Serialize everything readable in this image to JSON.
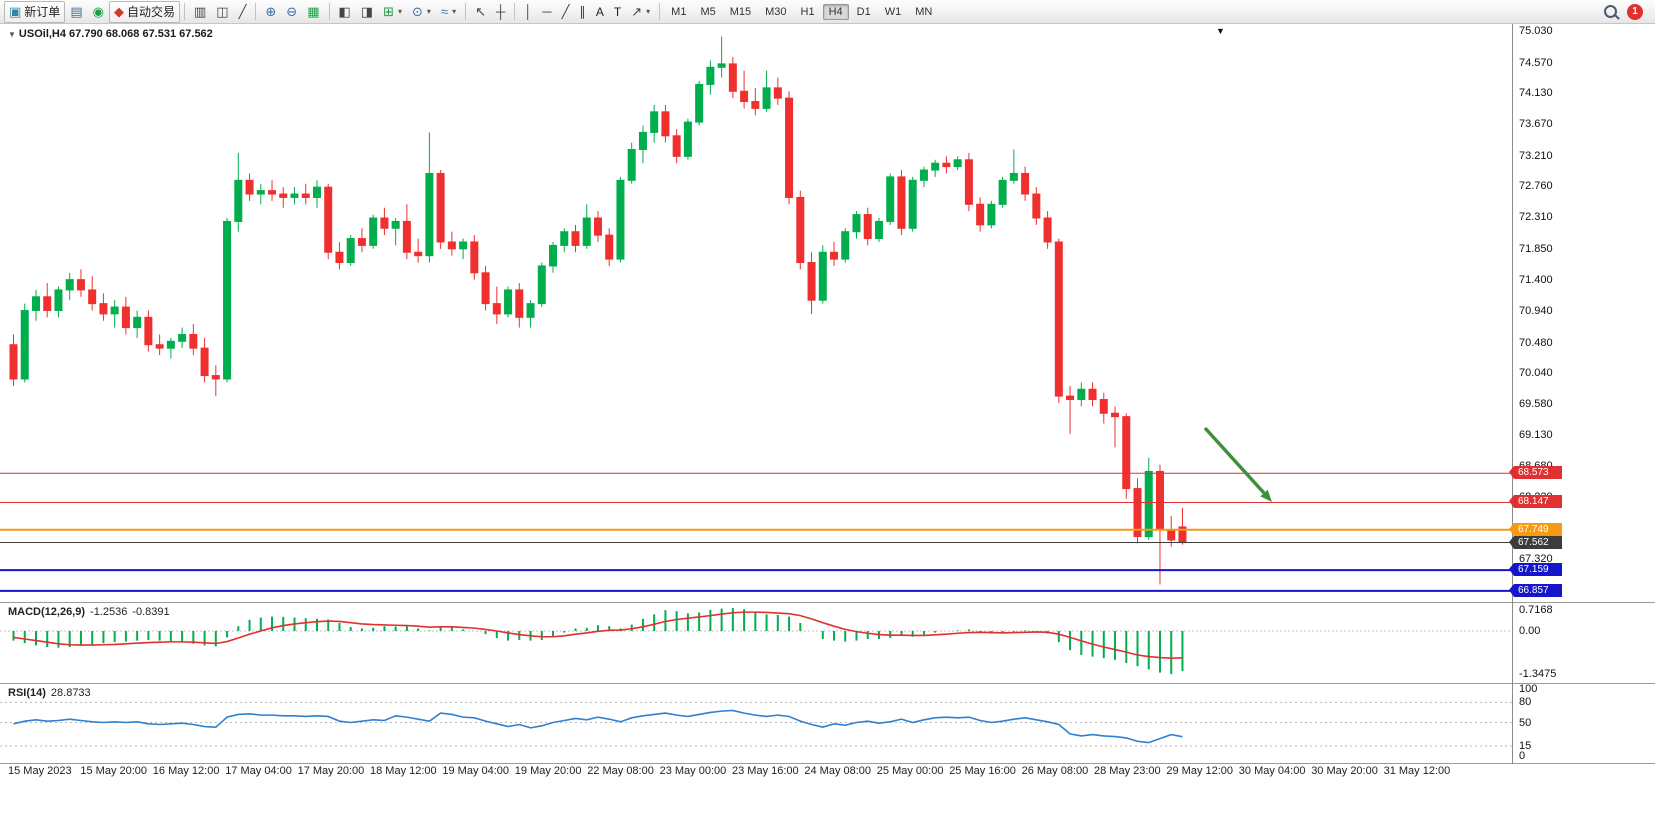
{
  "toolbar": {
    "new_order_label": "新订单",
    "auto_trading_label": "自动交易",
    "text_tool_label": "A",
    "textbox_tool_label": "T",
    "timeframes": [
      "M1",
      "M5",
      "M15",
      "M30",
      "H1",
      "H4",
      "D1",
      "W1",
      "MN"
    ],
    "active_timeframe": "H4",
    "notification_count": "1",
    "icons": {
      "new_order": "▣",
      "market_watch": "▤",
      "navigator": "◉",
      "auto_trading": "◆",
      "bars_chart": "▥",
      "candles_chart": "◫",
      "line_chart": "╱",
      "zoom_in": "⊕",
      "zoom_out": "⊖",
      "grid": "▦",
      "tile_windows": "◧",
      "cascade_windows": "◨",
      "new_chart": "⊞",
      "periods": "⊙",
      "indicators": "≈",
      "cursor": "↖",
      "crosshair": "┼",
      "vline": "│",
      "hline": "─",
      "trendline": "╱",
      "channel": "∥",
      "shapes": "↗",
      "caret": "▾",
      "shift_marker": "▼",
      "header_caret": "▼"
    }
  },
  "chart": {
    "symbol_header": "USOil,H4 67.790 68.068 67.531 67.562",
    "colors": {
      "up": "#00ae4d",
      "down": "#f02f2f",
      "macd_bar": "#00ae4d",
      "macd_signal": "#e03030",
      "rsi_line": "#2f80cf",
      "arrow": "#3f8e3a",
      "level_red": "#e03030",
      "level_orange": "#f59a12",
      "level_blue": "#1515cc",
      "level_dark": "#3c3c3c"
    },
    "price_axis_labels": [
      "75.030",
      "74.570",
      "74.130",
      "73.670",
      "73.210",
      "72.760",
      "72.310",
      "71.850",
      "71.400",
      "70.940",
      "70.480",
      "70.040",
      "69.580",
      "69.130",
      "68.680",
      "68.220",
      "67.760",
      "67.320",
      "66.860"
    ],
    "price_lines": [
      {
        "price": "68.573",
        "value": 68.573,
        "color": "#e03030",
        "line_width": 1
      },
      {
        "price": "68.147",
        "value": 68.147,
        "color": "#e03030",
        "line_width": 1
      },
      {
        "price": "67.749",
        "value": 67.749,
        "color": "#f59a12",
        "line_width": 2
      },
      {
        "price": "67.562",
        "value": 67.562,
        "color": "#3c3c3c",
        "line_width": 1
      },
      {
        "price": "67.159",
        "value": 67.159,
        "color": "#1515cc",
        "line_width": 2
      },
      {
        "price": "66.857",
        "value": 66.857,
        "color": "#1515cc",
        "line_width": 2
      }
    ],
    "candles": [
      [
        70.45,
        70.6,
        69.85,
        69.95
      ],
      [
        69.95,
        71.05,
        69.9,
        70.95
      ],
      [
        70.95,
        71.25,
        70.8,
        71.15
      ],
      [
        71.15,
        71.35,
        70.85,
        70.95
      ],
      [
        70.95,
        71.3,
        70.85,
        71.25
      ],
      [
        71.25,
        71.5,
        71.1,
        71.4
      ],
      [
        71.4,
        71.55,
        71.15,
        71.25
      ],
      [
        71.25,
        71.45,
        70.95,
        71.05
      ],
      [
        71.05,
        71.2,
        70.8,
        70.9
      ],
      [
        70.9,
        71.1,
        70.7,
        71.0
      ],
      [
        71.0,
        71.15,
        70.6,
        70.7
      ],
      [
        70.7,
        70.95,
        70.55,
        70.85
      ],
      [
        70.85,
        70.95,
        70.35,
        70.45
      ],
      [
        70.45,
        70.6,
        70.3,
        70.4
      ],
      [
        70.4,
        70.55,
        70.25,
        70.5
      ],
      [
        70.5,
        70.7,
        70.4,
        70.6
      ],
      [
        70.6,
        70.75,
        70.3,
        70.4
      ],
      [
        70.4,
        70.55,
        69.9,
        70.0
      ],
      [
        70.0,
        70.15,
        69.7,
        69.95
      ],
      [
        69.95,
        72.3,
        69.9,
        72.25
      ],
      [
        72.25,
        73.25,
        72.1,
        72.85
      ],
      [
        72.85,
        72.95,
        72.55,
        72.65
      ],
      [
        72.65,
        72.8,
        72.5,
        72.7
      ],
      [
        72.7,
        72.85,
        72.55,
        72.65
      ],
      [
        72.65,
        72.75,
        72.45,
        72.6
      ],
      [
        72.6,
        72.75,
        72.5,
        72.65
      ],
      [
        72.65,
        72.8,
        72.5,
        72.6
      ],
      [
        72.6,
        72.85,
        72.45,
        72.75
      ],
      [
        72.75,
        72.8,
        71.7,
        71.8
      ],
      [
        71.8,
        71.95,
        71.55,
        71.65
      ],
      [
        71.65,
        72.05,
        71.6,
        72.0
      ],
      [
        72.0,
        72.15,
        71.8,
        71.9
      ],
      [
        71.9,
        72.35,
        71.85,
        72.3
      ],
      [
        72.3,
        72.45,
        72.05,
        72.15
      ],
      [
        72.15,
        72.3,
        71.9,
        72.25
      ],
      [
        72.25,
        72.5,
        71.7,
        71.8
      ],
      [
        71.8,
        72.0,
        71.65,
        71.75
      ],
      [
        71.75,
        73.55,
        71.65,
        72.95
      ],
      [
        72.95,
        73.0,
        71.85,
        71.95
      ],
      [
        71.95,
        72.1,
        71.75,
        71.85
      ],
      [
        71.85,
        72.0,
        71.7,
        71.95
      ],
      [
        71.95,
        72.05,
        71.4,
        71.5
      ],
      [
        71.5,
        71.6,
        70.95,
        71.05
      ],
      [
        71.05,
        71.3,
        70.75,
        70.9
      ],
      [
        70.9,
        71.3,
        70.85,
        71.25
      ],
      [
        71.25,
        71.35,
        70.7,
        70.85
      ],
      [
        70.85,
        71.1,
        70.7,
        71.05
      ],
      [
        71.05,
        71.65,
        71.0,
        71.6
      ],
      [
        71.6,
        71.95,
        71.5,
        71.9
      ],
      [
        71.9,
        72.15,
        71.8,
        72.1
      ],
      [
        72.1,
        72.2,
        71.8,
        71.9
      ],
      [
        71.9,
        72.5,
        71.85,
        72.3
      ],
      [
        72.3,
        72.4,
        71.95,
        72.05
      ],
      [
        72.05,
        72.15,
        71.6,
        71.7
      ],
      [
        71.7,
        72.9,
        71.65,
        72.85
      ],
      [
        72.85,
        73.4,
        72.8,
        73.3
      ],
      [
        73.3,
        73.65,
        73.1,
        73.55
      ],
      [
        73.55,
        73.95,
        73.4,
        73.85
      ],
      [
        73.85,
        73.95,
        73.4,
        73.5
      ],
      [
        73.5,
        73.6,
        73.1,
        73.2
      ],
      [
        73.2,
        73.75,
        73.15,
        73.7
      ],
      [
        73.7,
        74.3,
        73.65,
        74.25
      ],
      [
        74.25,
        74.6,
        74.1,
        74.5
      ],
      [
        74.5,
        74.95,
        74.35,
        74.55
      ],
      [
        74.55,
        74.65,
        74.05,
        74.15
      ],
      [
        74.15,
        74.45,
        73.9,
        74.0
      ],
      [
        74.0,
        74.2,
        73.8,
        73.9
      ],
      [
        73.9,
        74.45,
        73.85,
        74.2
      ],
      [
        74.2,
        74.35,
        73.95,
        74.05
      ],
      [
        74.05,
        74.15,
        72.5,
        72.6
      ],
      [
        72.6,
        72.7,
        71.55,
        71.65
      ],
      [
        71.65,
        71.8,
        70.9,
        71.1
      ],
      [
        71.1,
        71.9,
        71.05,
        71.8
      ],
      [
        71.8,
        71.95,
        71.6,
        71.7
      ],
      [
        71.7,
        72.15,
        71.65,
        72.1
      ],
      [
        72.1,
        72.4,
        72.0,
        72.35
      ],
      [
        72.35,
        72.45,
        71.9,
        72.0
      ],
      [
        72.0,
        72.3,
        71.95,
        72.25
      ],
      [
        72.25,
        72.95,
        72.2,
        72.9
      ],
      [
        72.9,
        73.0,
        72.05,
        72.15
      ],
      [
        72.15,
        72.9,
        72.1,
        72.85
      ],
      [
        72.85,
        73.05,
        72.75,
        73.0
      ],
      [
        73.0,
        73.15,
        72.9,
        73.1
      ],
      [
        73.1,
        73.2,
        72.95,
        73.05
      ],
      [
        73.05,
        73.2,
        73.0,
        73.15
      ],
      [
        73.15,
        73.25,
        72.4,
        72.5
      ],
      [
        72.5,
        72.6,
        72.1,
        72.2
      ],
      [
        72.2,
        72.55,
        72.15,
        72.5
      ],
      [
        72.5,
        72.9,
        72.45,
        72.85
      ],
      [
        72.85,
        73.3,
        72.8,
        72.95
      ],
      [
        72.95,
        73.05,
        72.55,
        72.65
      ],
      [
        72.65,
        72.75,
        72.2,
        72.3
      ],
      [
        72.3,
        72.4,
        71.85,
        71.95
      ],
      [
        71.95,
        72.0,
        69.6,
        69.7
      ],
      [
        69.7,
        69.85,
        69.15,
        69.65
      ],
      [
        69.65,
        69.9,
        69.55,
        69.8
      ],
      [
        69.8,
        69.9,
        69.55,
        69.65
      ],
      [
        69.65,
        69.75,
        69.3,
        69.45
      ],
      [
        69.45,
        69.55,
        68.95,
        69.4
      ],
      [
        69.4,
        69.45,
        68.2,
        68.35
      ],
      [
        68.35,
        68.5,
        67.55,
        67.65
      ],
      [
        67.65,
        68.8,
        67.6,
        68.6
      ],
      [
        68.6,
        68.7,
        66.95,
        67.75
      ],
      [
        67.75,
        67.95,
        67.5,
        67.6
      ],
      [
        67.79,
        68.068,
        67.531,
        67.562
      ]
    ]
  },
  "macd": {
    "title": "MACD(12,26,9)",
    "value1": "-1.2536",
    "value2": "-0.8391",
    "axis_labels": [
      "0.7168",
      "0.00",
      "-1.3475"
    ],
    "axis_values": [
      0.7168,
      0,
      -1.3475
    ],
    "histogram": [
      -0.3,
      -0.38,
      -0.45,
      -0.5,
      -0.52,
      -0.5,
      -0.46,
      -0.42,
      -0.38,
      -0.35,
      -0.33,
      -0.3,
      -0.28,
      -0.3,
      -0.33,
      -0.36,
      -0.4,
      -0.45,
      -0.48,
      -0.2,
      0.15,
      0.35,
      0.42,
      0.45,
      0.44,
      0.42,
      0.4,
      0.38,
      0.36,
      0.25,
      0.12,
      0.08,
      0.1,
      0.15,
      0.14,
      0.15,
      0.08,
      0.02,
      0.15,
      0.12,
      0.05,
      0.0,
      -0.1,
      -0.22,
      -0.3,
      -0.28,
      -0.3,
      -0.28,
      -0.18,
      -0.05,
      0.08,
      0.1,
      0.18,
      0.15,
      0.08,
      0.2,
      0.38,
      0.52,
      0.65,
      0.62,
      0.55,
      0.58,
      0.66,
      0.7,
      0.7168,
      0.68,
      0.6,
      0.52,
      0.5,
      0.45,
      0.25,
      0.0,
      -0.25,
      -0.3,
      -0.33,
      -0.3,
      -0.25,
      -0.25,
      -0.22,
      -0.15,
      -0.18,
      -0.12,
      -0.05,
      0.0,
      0.02,
      0.05,
      -0.02,
      -0.08,
      -0.08,
      -0.02,
      0.02,
      0.0,
      -0.08,
      -0.35,
      -0.6,
      -0.75,
      -0.8,
      -0.85,
      -0.9,
      -1.0,
      -1.1,
      -1.2,
      -1.3,
      -1.3475,
      -1.2536
    ],
    "signal": [
      -0.2,
      -0.25,
      -0.3,
      -0.35,
      -0.4,
      -0.43,
      -0.44,
      -0.44,
      -0.43,
      -0.42,
      -0.4,
      -0.38,
      -0.36,
      -0.35,
      -0.34,
      -0.34,
      -0.35,
      -0.37,
      -0.39,
      -0.33,
      -0.22,
      -0.1,
      0.0,
      0.1,
      0.17,
      0.22,
      0.26,
      0.29,
      0.31,
      0.3,
      0.26,
      0.22,
      0.2,
      0.19,
      0.18,
      0.17,
      0.15,
      0.12,
      0.13,
      0.13,
      0.11,
      0.09,
      0.05,
      0.0,
      -0.06,
      -0.11,
      -0.15,
      -0.18,
      -0.18,
      -0.15,
      -0.1,
      -0.06,
      -0.01,
      0.02,
      0.03,
      0.07,
      0.13,
      0.21,
      0.3,
      0.36,
      0.4,
      0.44,
      0.48,
      0.53,
      0.57,
      0.59,
      0.59,
      0.58,
      0.56,
      0.54,
      0.48,
      0.38,
      0.26,
      0.15,
      0.05,
      -0.02,
      -0.07,
      -0.11,
      -0.13,
      -0.13,
      -0.14,
      -0.14,
      -0.12,
      -0.1,
      -0.07,
      -0.05,
      -0.04,
      -0.05,
      -0.06,
      -0.05,
      -0.04,
      -0.03,
      -0.04,
      -0.1,
      -0.2,
      -0.31,
      -0.41,
      -0.5,
      -0.58,
      -0.66,
      -0.75,
      -0.8,
      -0.83,
      -0.85,
      -0.8391
    ]
  },
  "rsi": {
    "title": "RSI(14)",
    "value": "28.8733",
    "axis_labels": [
      "100",
      "80",
      "50",
      "15",
      "0"
    ],
    "axis_values": [
      100,
      80,
      50,
      15,
      0
    ],
    "levels": [
      80,
      50,
      15
    ],
    "values": [
      48,
      52,
      54,
      52,
      53,
      55,
      53,
      51,
      50,
      51,
      50,
      51,
      48,
      47,
      48,
      49,
      47,
      44,
      43,
      58,
      62,
      63,
      61,
      61,
      60,
      60,
      59,
      60,
      59,
      52,
      50,
      52,
      54,
      53,
      60,
      58,
      55,
      52,
      64,
      62,
      58,
      57,
      52,
      48,
      44,
      47,
      42,
      45,
      50,
      53,
      56,
      54,
      58,
      55,
      51,
      57,
      60,
      62,
      64,
      61,
      59,
      62,
      65,
      67,
      68,
      64,
      61,
      59,
      61,
      59,
      52,
      47,
      43,
      48,
      46,
      50,
      52,
      49,
      51,
      55,
      50,
      54,
      57,
      58,
      57,
      58,
      53,
      50,
      52,
      55,
      57,
      54,
      51,
      47,
      33,
      30,
      32,
      30,
      29,
      27,
      22,
      20,
      26,
      32,
      28.87
    ]
  },
  "time_axis": [
    "15 May 2023",
    "15 May 20:00",
    "16 May 12:00",
    "17 May 04:00",
    "17 May 20:00",
    "18 May 12:00",
    "19 May 04:00",
    "19 May 20:00",
    "22 May 08:00",
    "23 May 00:00",
    "23 May 16:00",
    "24 May 08:00",
    "25 May 00:00",
    "25 May 16:00",
    "26 May 08:00",
    "28 May 23:00",
    "29 May 12:00",
    "30 May 04:00",
    "30 May 20:00",
    "31 May 12:00"
  ]
}
